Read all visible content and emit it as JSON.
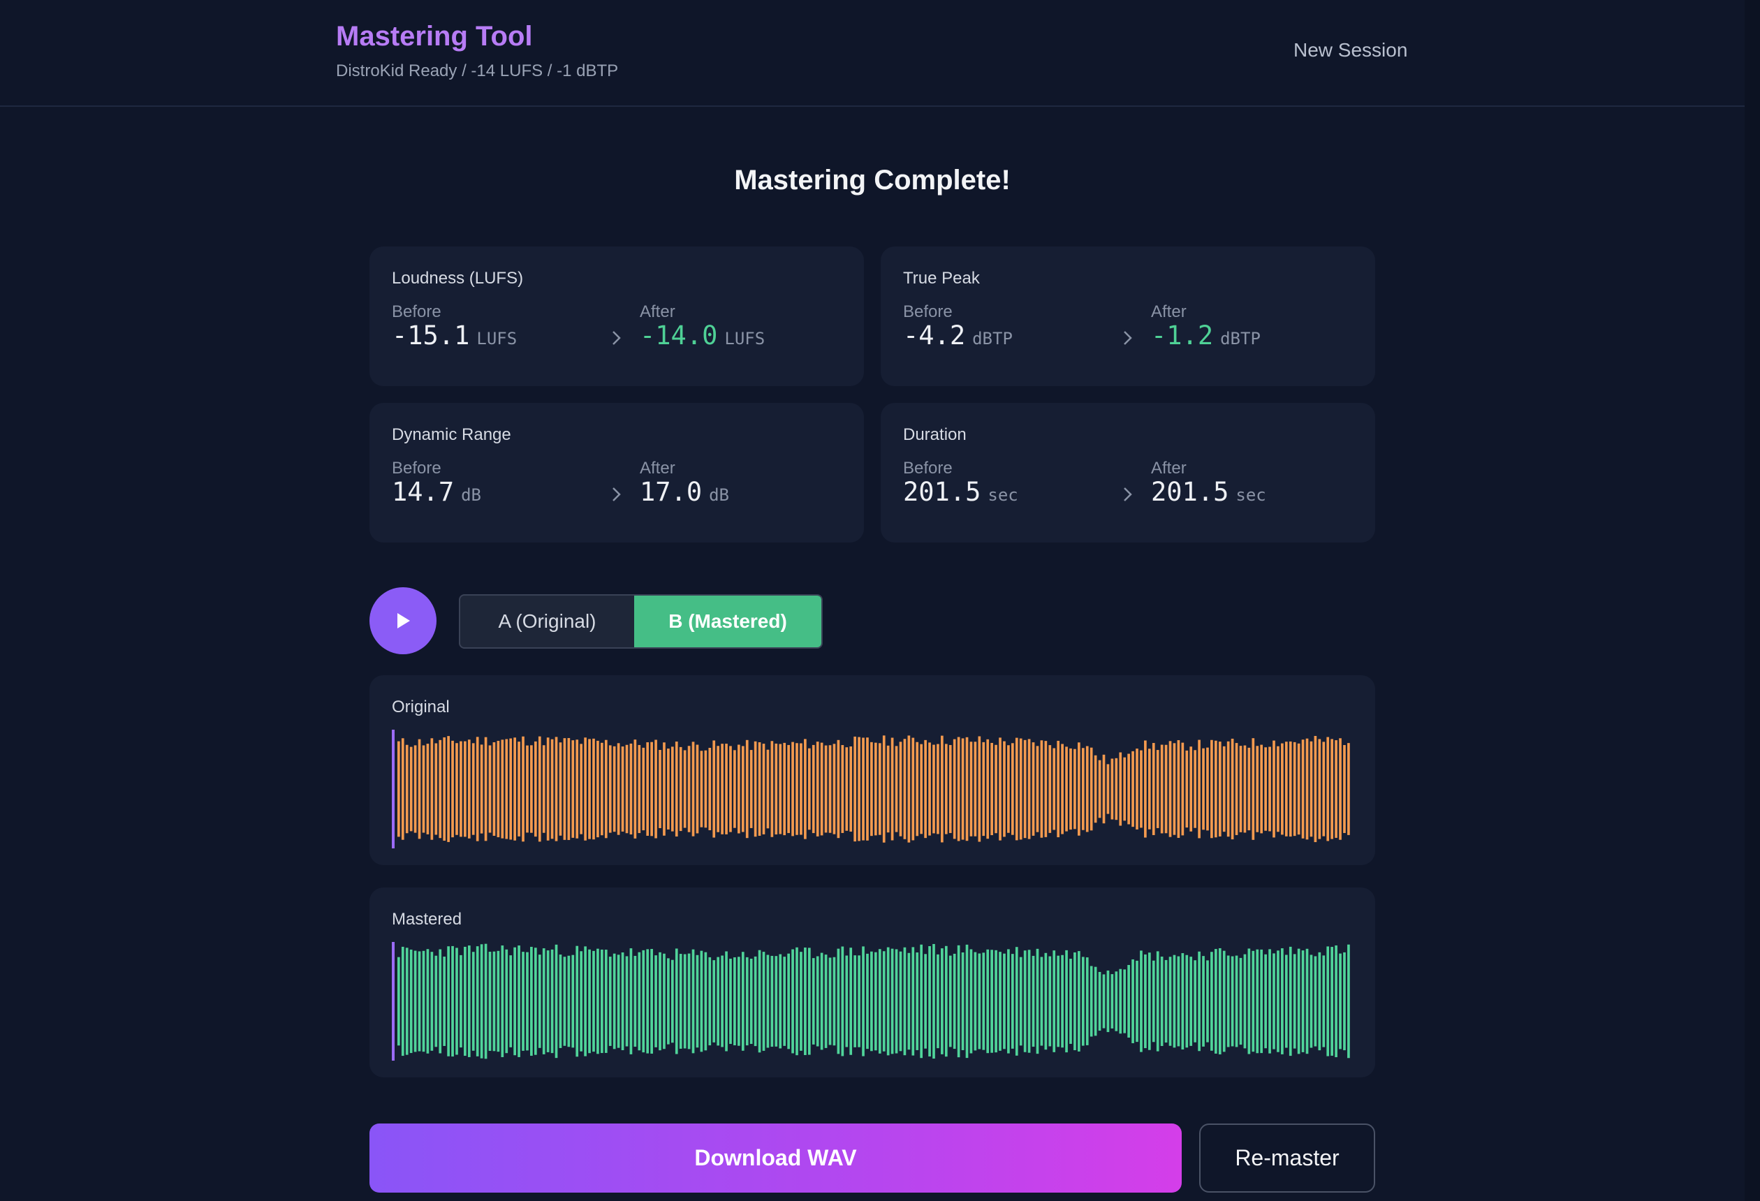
{
  "header": {
    "title": "Mastering Tool",
    "subtitle": "DistroKid Ready / -14 LUFS / -1 dBTP",
    "new_session": "New Session"
  },
  "page_title": "Mastering Complete!",
  "labels": {
    "before": "Before",
    "after": "After"
  },
  "metrics": [
    {
      "label": "Loudness (LUFS)",
      "before": "-15.1",
      "after": "-14.0",
      "unit": "LUFS",
      "after_highlight": true
    },
    {
      "label": "True Peak",
      "before": "-4.2",
      "after": "-1.2",
      "unit": "dBTP",
      "after_highlight": true
    },
    {
      "label": "Dynamic Range",
      "before": "14.7",
      "after": "17.0",
      "unit": "dB",
      "after_highlight": false
    },
    {
      "label": "Duration",
      "before": "201.5",
      "after": "201.5",
      "unit": "sec",
      "after_highlight": false
    }
  ],
  "ab": {
    "a_label": "A (Original)",
    "b_label": "B (Mastered)",
    "selected": "B"
  },
  "waveforms": {
    "original": {
      "label": "Original",
      "color": "#f39a4f"
    },
    "mastered": {
      "label": "Mastered",
      "color": "#50d49a"
    },
    "playhead_color": "#9b6bf7"
  },
  "actions": {
    "download": "Download WAV",
    "remaster": "Re-master"
  },
  "icons": {
    "play": "play-icon",
    "arrow": "chevron-right-icon"
  }
}
